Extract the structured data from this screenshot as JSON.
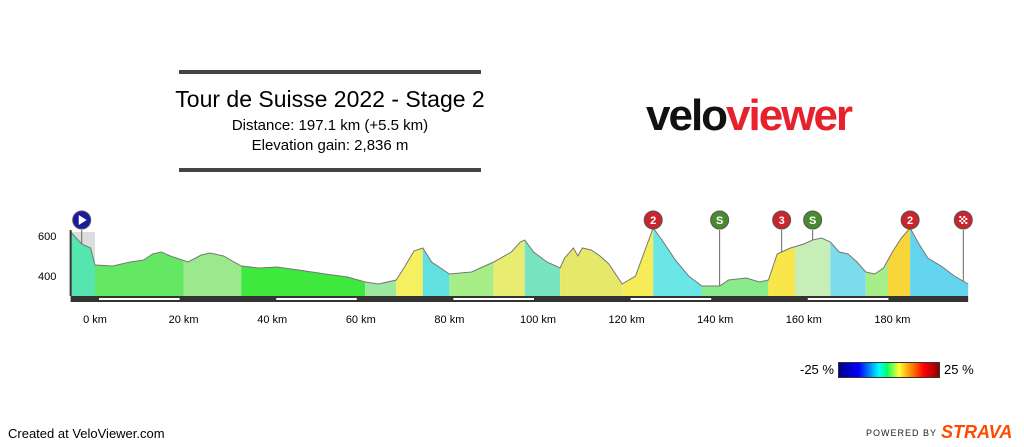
{
  "header": {
    "title": "Tour de Suisse 2022 - Stage 2",
    "distance": "Distance: 197.1 km (+5.5 km)",
    "elevation": "Elevation gain: 2,836 m"
  },
  "logo": {
    "part1": "velo",
    "part2": "viewer"
  },
  "footer": {
    "created": "Created at VeloViewer.com",
    "powered_by": "POWERED BY",
    "brand": "STRAVA"
  },
  "legend": {
    "min": "-25 %",
    "max": "25 %"
  },
  "colors": {
    "climb_red": "#c8252c",
    "sprint_green": "#4a8a2f",
    "start_blue": "#1a1aa0",
    "strava": "#fc4c02"
  },
  "chart_data": {
    "type": "area",
    "xlabel": "",
    "ylabel": "",
    "xlim": [
      -5.5,
      197.1
    ],
    "ylim": [
      200,
      800
    ],
    "x_ticks": [
      0,
      20,
      40,
      60,
      80,
      100,
      120,
      140,
      160,
      180
    ],
    "x_tick_labels": [
      "0 km",
      "20 km",
      "40 km",
      "60 km",
      "80 km",
      "100 km",
      "120 km",
      "140 km",
      "160 km",
      "180 km"
    ],
    "y_ticks": [
      400,
      600
    ],
    "y_tick_labels": [
      "400",
      "600"
    ],
    "neutral_start_km": -5.5,
    "profile": [
      [
        -5.5,
        620
      ],
      [
        -3,
        560
      ],
      [
        -1,
        540
      ],
      [
        0,
        455
      ],
      [
        4,
        450
      ],
      [
        8,
        470
      ],
      [
        11,
        480
      ],
      [
        13,
        510
      ],
      [
        15,
        520
      ],
      [
        17,
        500
      ],
      [
        21,
        470
      ],
      [
        24,
        505
      ],
      [
        26,
        515
      ],
      [
        29,
        500
      ],
      [
        33,
        450
      ],
      [
        37,
        440
      ],
      [
        41,
        445
      ],
      [
        46,
        430
      ],
      [
        52,
        410
      ],
      [
        57,
        395
      ],
      [
        61,
        370
      ],
      [
        64,
        360
      ],
      [
        68,
        380
      ],
      [
        70,
        450
      ],
      [
        72,
        525
      ],
      [
        74,
        540
      ],
      [
        76,
        470
      ],
      [
        80,
        410
      ],
      [
        85,
        420
      ],
      [
        90,
        470
      ],
      [
        94,
        520
      ],
      [
        96,
        570
      ],
      [
        97,
        580
      ],
      [
        99,
        520
      ],
      [
        102,
        470
      ],
      [
        105,
        440
      ],
      [
        106,
        490
      ],
      [
        108,
        540
      ],
      [
        109,
        500
      ],
      [
        110,
        540
      ],
      [
        112,
        530
      ],
      [
        114,
        500
      ],
      [
        116,
        460
      ],
      [
        119,
        360
      ],
      [
        122,
        400
      ],
      [
        124,
        520
      ],
      [
        126,
        640
      ],
      [
        128,
        580
      ],
      [
        131,
        480
      ],
      [
        134,
        400
      ],
      [
        137,
        350
      ],
      [
        141,
        350
      ],
      [
        143,
        380
      ],
      [
        147,
        390
      ],
      [
        150,
        370
      ],
      [
        152,
        380
      ],
      [
        154,
        510
      ],
      [
        157,
        540
      ],
      [
        160,
        560
      ],
      [
        162,
        580
      ],
      [
        164,
        590
      ],
      [
        166,
        570
      ],
      [
        168,
        520
      ],
      [
        170,
        510
      ],
      [
        172,
        470
      ],
      [
        174,
        420
      ],
      [
        176,
        410
      ],
      [
        178,
        440
      ],
      [
        180,
        520
      ],
      [
        182,
        590
      ],
      [
        184,
        640
      ],
      [
        186,
        560
      ],
      [
        188,
        490
      ],
      [
        191,
        450
      ],
      [
        194,
        400
      ],
      [
        197.1,
        360
      ]
    ],
    "gradient_segments": [
      {
        "from": -5.5,
        "to": 0,
        "color": "#55e6b0"
      },
      {
        "from": 0,
        "to": 20,
        "color": "#64e864"
      },
      {
        "from": 20,
        "to": 33,
        "color": "#9ae98c"
      },
      {
        "from": 33,
        "to": 61,
        "color": "#3ee83c"
      },
      {
        "from": 61,
        "to": 68,
        "color": "#9de8a0"
      },
      {
        "from": 68,
        "to": 74,
        "color": "#f4f060"
      },
      {
        "from": 74,
        "to": 80,
        "color": "#60e0e0"
      },
      {
        "from": 80,
        "to": 90,
        "color": "#a8ee88"
      },
      {
        "from": 90,
        "to": 97,
        "color": "#e8ec70"
      },
      {
        "from": 97,
        "to": 105,
        "color": "#78e4c0"
      },
      {
        "from": 105,
        "to": 119,
        "color": "#e6e86a"
      },
      {
        "from": 119,
        "to": 126,
        "color": "#f6ec58"
      },
      {
        "from": 126,
        "to": 137,
        "color": "#6ae6e6"
      },
      {
        "from": 137,
        "to": 152,
        "color": "#88ea88"
      },
      {
        "from": 152,
        "to": 158,
        "color": "#f8e64a"
      },
      {
        "from": 158,
        "to": 166,
        "color": "#c8eeb8"
      },
      {
        "from": 166,
        "to": 174,
        "color": "#7cdcec"
      },
      {
        "from": 174,
        "to": 179,
        "color": "#a8ee88"
      },
      {
        "from": 179,
        "to": 184,
        "color": "#f8d63a"
      },
      {
        "from": 184,
        "to": 197.1,
        "color": "#64d4ee"
      }
    ],
    "markers": [
      {
        "km": -3,
        "label": "",
        "kind": "start"
      },
      {
        "km": 126,
        "label": "2",
        "kind": "climb"
      },
      {
        "km": 141,
        "label": "S",
        "kind": "sprint"
      },
      {
        "km": 155,
        "label": "3",
        "kind": "climb"
      },
      {
        "km": 162,
        "label": "S",
        "kind": "sprint"
      },
      {
        "km": 184,
        "label": "2",
        "kind": "climb"
      },
      {
        "km": 196,
        "label": "",
        "kind": "finish"
      }
    ],
    "km_bars": [
      [
        0,
        20
      ],
      [
        40,
        60
      ],
      [
        80,
        100
      ],
      [
        120,
        140
      ],
      [
        160,
        180
      ]
    ]
  }
}
